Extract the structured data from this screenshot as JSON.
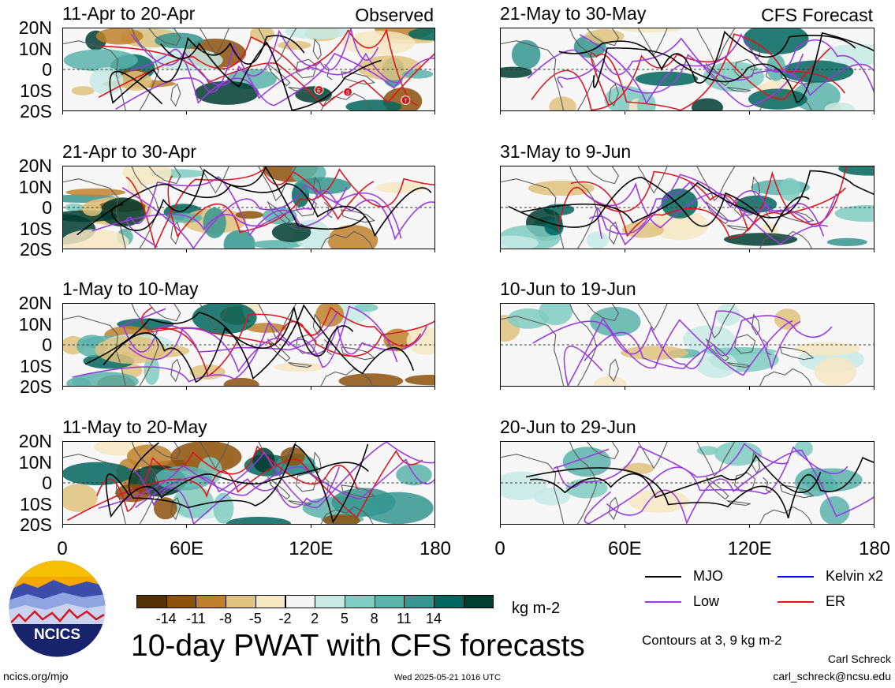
{
  "panels": [
    {
      "id": "obs-1",
      "title": "11-Apr to 20-Apr",
      "tag": "Observed",
      "column": "observed",
      "contours": [
        "er",
        "low",
        "mjo"
      ]
    },
    {
      "id": "obs-2",
      "title": "21-Apr to 30-Apr",
      "tag": "",
      "column": "observed",
      "contours": [
        "er",
        "low",
        "mjo"
      ]
    },
    {
      "id": "obs-3",
      "title": "1-May to 10-May",
      "tag": "",
      "column": "observed",
      "contours": [
        "er",
        "low",
        "mjo"
      ]
    },
    {
      "id": "obs-4",
      "title": "11-May to 20-May",
      "tag": "",
      "column": "observed",
      "contours": [
        "er",
        "low",
        "mjo"
      ]
    },
    {
      "id": "fc-1",
      "title": "21-May to 30-May",
      "tag": "CFS Forecast",
      "column": "forecast",
      "contours": [
        "er",
        "low",
        "mjo"
      ]
    },
    {
      "id": "fc-2",
      "title": "31-May to 9-Jun",
      "tag": "",
      "column": "forecast",
      "contours": [
        "er",
        "low",
        "mjo"
      ]
    },
    {
      "id": "fc-3",
      "title": "10-Jun to 19-Jun",
      "tag": "",
      "column": "forecast",
      "contours": [
        "low"
      ]
    },
    {
      "id": "fc-4",
      "title": "20-Jun to 29-Jun",
      "tag": "",
      "column": "forecast",
      "contours": [
        "low",
        "mjo"
      ]
    }
  ],
  "lat_labels": [
    "20N",
    "10N",
    "0",
    "10S",
    "20S"
  ],
  "lon_labels": [
    "0",
    "60E",
    "120E",
    "180"
  ],
  "colorbar": {
    "colors": [
      "#543005",
      "#8c510a",
      "#bf812d",
      "#dfc27d",
      "#f6e8c3",
      "#f5f5f5",
      "#c7eae5",
      "#80cdc1",
      "#5ab4ac",
      "#35978f",
      "#01665e",
      "#003c30"
    ],
    "labels": [
      "-14",
      "-11",
      "-8",
      "-5",
      "-2",
      "2",
      "5",
      "8",
      "11",
      "14"
    ],
    "units": "kg m-2"
  },
  "legend": {
    "items": [
      {
        "label": "MJO",
        "color": "#000000"
      },
      {
        "label": "Kelvin x2",
        "color": "#0000ff"
      },
      {
        "label": "Low",
        "color": "#9a3ae0"
      },
      {
        "label": "ER",
        "color": "#e0141e"
      }
    ],
    "contours_note": "Contours at 3, 9 kg m-2"
  },
  "main_title": "10-day PWAT with CFS forecasts",
  "logo_text": "NCICS",
  "footer": {
    "url": "ncics.org/mjo",
    "timestamp": "Wed 2025-05-21 1016 UTC",
    "author": "Carl Schreck",
    "email": "carl_schreck@ncsu.edu"
  },
  "tc_markers": [
    "E",
    "S",
    "T"
  ]
}
